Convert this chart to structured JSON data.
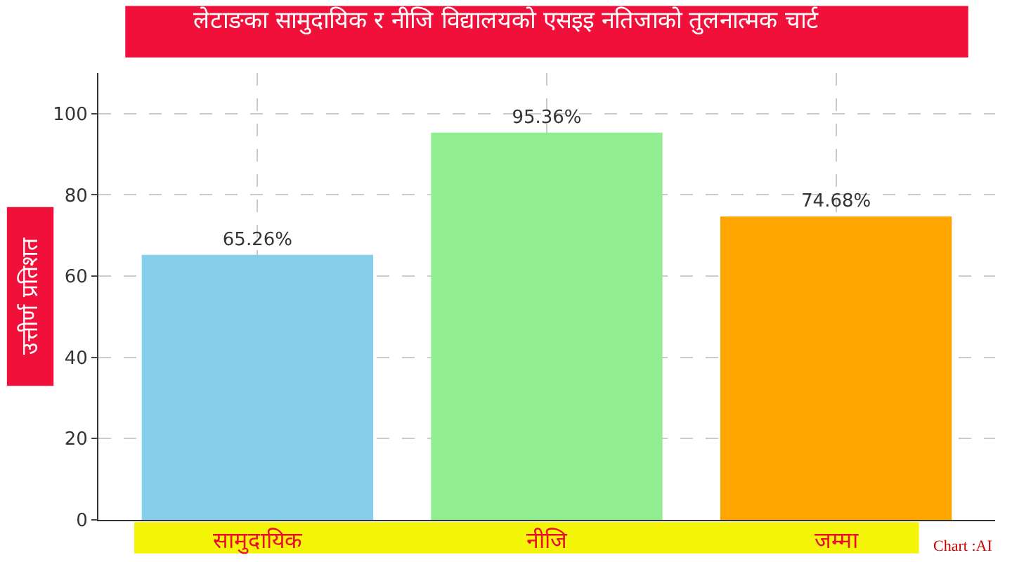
{
  "chart_data": {
    "type": "bar",
    "title": "लेटाङका सामुदायिक र नीजि विद्यालयको एसइइ नतिजाको तुलनात्मक चार्ट",
    "ylabel": "उत्तीर्ण प्रतिशत",
    "categories": [
      "सामुदायिक",
      "नीजि",
      "जम्मा"
    ],
    "values": [
      65.26,
      95.36,
      74.68
    ],
    "colors": [
      "#87ceeb",
      "#90ee90",
      "#ffa500"
    ],
    "value_labels": [
      "65.26%",
      "95.36%",
      "74.68%"
    ],
    "ylim": [
      0,
      110
    ],
    "yticks": [
      0,
      20,
      40,
      60,
      80,
      100
    ],
    "grid": true,
    "annotations": [
      "Chart :AI"
    ]
  }
}
